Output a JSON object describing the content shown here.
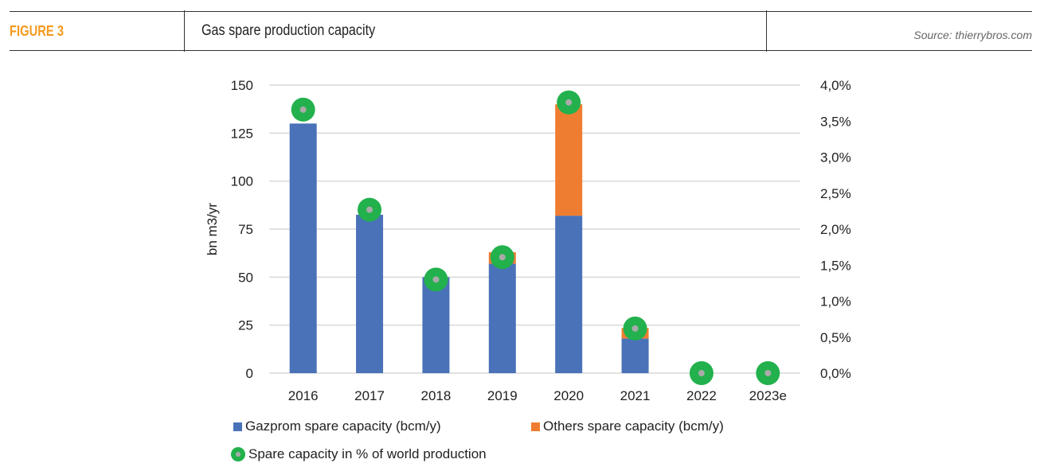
{
  "header": {
    "figure": "FIGURE 3",
    "title": "Gas spare production capacity",
    "source": "Source: thierrybros.com"
  },
  "chart_data": {
    "type": "bar",
    "stacked": true,
    "categories": [
      "2016",
      "2017",
      "2018",
      "2019",
      "2020",
      "2021",
      "2022",
      "2023e"
    ],
    "series": [
      {
        "name": "Gazprom spare capacity (bcm/y)",
        "axis": "left",
        "color": "#4a72b8",
        "values": [
          130,
          82.5,
          50,
          57,
          82,
          18,
          0,
          0
        ]
      },
      {
        "name": "Others spare capacity (bcm/y)",
        "axis": "left",
        "color": "#ef7d31",
        "values": [
          0,
          0,
          0,
          6,
          58,
          5.5,
          0,
          0
        ]
      },
      {
        "name": "Spare capacity in % of world production",
        "axis": "right",
        "type": "scatter",
        "color": "#22b14c",
        "values": [
          3.66,
          2.27,
          1.3,
          1.61,
          3.76,
          0.62,
          0,
          0
        ]
      }
    ],
    "ylabel": "bn m3/yr",
    "ylim": [
      0,
      150
    ],
    "yticks": [
      "0",
      "25",
      "50",
      "75",
      "100",
      "125",
      "150"
    ],
    "y2lim": [
      0,
      4.0
    ],
    "y2ticks": [
      "0,0%",
      "0,5%",
      "1,0%",
      "1,5%",
      "2,0%",
      "2,5%",
      "3,0%",
      "3,5%",
      "4,0%"
    ],
    "grid": true,
    "legend": "bottom"
  }
}
